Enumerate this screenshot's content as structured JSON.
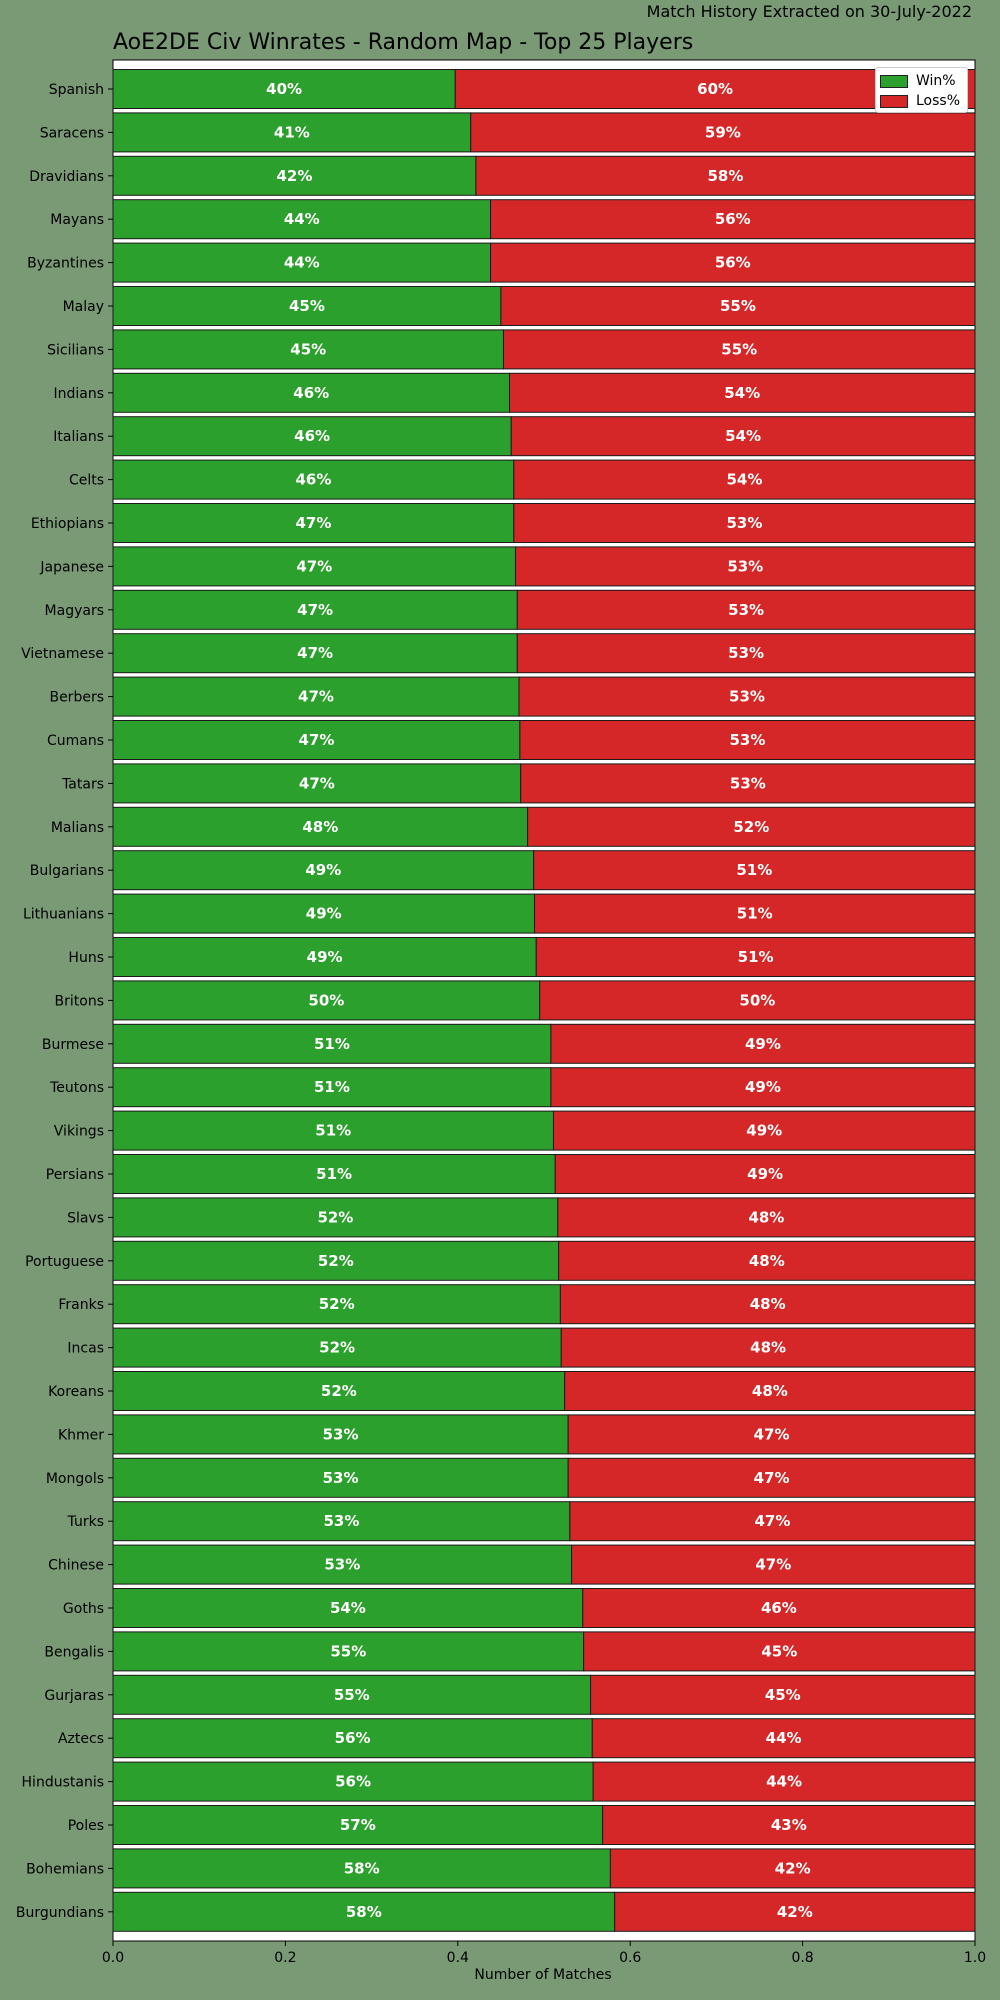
{
  "header": {
    "subtitle": "Match History Extracted on 30-July-2022",
    "title": "AoE2DE Civ Winrates - Random Map - Top 25 Players"
  },
  "legend": {
    "win_label": "Win%",
    "loss_label": "Loss%"
  },
  "colors": {
    "win": "#2ca02c",
    "loss": "#d62728",
    "background": "#7a9a76",
    "plot_background": "#ffffff"
  },
  "chart_data": {
    "type": "bar",
    "orientation": "horizontal",
    "stacked": true,
    "title": "AoE2DE Civ Winrates - Random Map - Top 25 Players",
    "xlabel": "Number of Matches",
    "ylabel": "",
    "xlim": [
      0,
      1.0
    ],
    "xticks": [
      "0.0",
      "0.2",
      "0.4",
      "0.6",
      "0.8",
      "1.0"
    ],
    "legend_position": "top-right",
    "categories": [
      "Spanish",
      "Saracens",
      "Dravidians",
      "Mayans",
      "Byzantines",
      "Malay",
      "Sicilians",
      "Indians",
      "Italians",
      "Celts",
      "Ethiopians",
      "Japanese",
      "Magyars",
      "Vietnamese",
      "Berbers",
      "Cumans",
      "Tatars",
      "Malians",
      "Bulgarians",
      "Lithuanians",
      "Huns",
      "Britons",
      "Burmese",
      "Teutons",
      "Vikings",
      "Persians",
      "Slavs",
      "Portuguese",
      "Franks",
      "Incas",
      "Koreans",
      "Khmer",
      "Mongols",
      "Turks",
      "Chinese",
      "Goths",
      "Bengalis",
      "Gurjaras",
      "Aztecs",
      "Hindustanis",
      "Poles",
      "Bohemians",
      "Burgundians"
    ],
    "series": [
      {
        "name": "Win%",
        "values": [
          0.397,
          0.415,
          0.421,
          0.438,
          0.438,
          0.45,
          0.453,
          0.46,
          0.462,
          0.465,
          0.465,
          0.467,
          0.469,
          0.469,
          0.471,
          0.472,
          0.473,
          0.481,
          0.488,
          0.489,
          0.491,
          0.495,
          0.508,
          0.508,
          0.511,
          0.513,
          0.516,
          0.517,
          0.519,
          0.52,
          0.524,
          0.528,
          0.528,
          0.53,
          0.532,
          0.545,
          0.546,
          0.554,
          0.556,
          0.557,
          0.568,
          0.577,
          0.582
        ],
        "labels": [
          "40%",
          "41%",
          "42%",
          "44%",
          "44%",
          "45%",
          "45%",
          "46%",
          "46%",
          "46%",
          "47%",
          "47%",
          "47%",
          "47%",
          "47%",
          "47%",
          "47%",
          "48%",
          "49%",
          "49%",
          "49%",
          "50%",
          "51%",
          "51%",
          "51%",
          "51%",
          "52%",
          "52%",
          "52%",
          "52%",
          "52%",
          "53%",
          "53%",
          "53%",
          "53%",
          "54%",
          "55%",
          "55%",
          "56%",
          "56%",
          "57%",
          "58%",
          "58%"
        ]
      },
      {
        "name": "Loss%",
        "values": [
          0.603,
          0.585,
          0.579,
          0.562,
          0.562,
          0.55,
          0.547,
          0.54,
          0.538,
          0.535,
          0.535,
          0.533,
          0.531,
          0.531,
          0.529,
          0.528,
          0.527,
          0.519,
          0.512,
          0.511,
          0.509,
          0.505,
          0.492,
          0.492,
          0.489,
          0.487,
          0.484,
          0.483,
          0.481,
          0.48,
          0.476,
          0.472,
          0.472,
          0.47,
          0.468,
          0.455,
          0.454,
          0.446,
          0.444,
          0.443,
          0.432,
          0.423,
          0.418
        ],
        "labels": [
          "60%",
          "59%",
          "58%",
          "56%",
          "56%",
          "55%",
          "55%",
          "54%",
          "54%",
          "54%",
          "53%",
          "53%",
          "53%",
          "53%",
          "53%",
          "53%",
          "53%",
          "52%",
          "51%",
          "51%",
          "51%",
          "50%",
          "49%",
          "49%",
          "49%",
          "49%",
          "48%",
          "48%",
          "48%",
          "48%",
          "48%",
          "47%",
          "47%",
          "47%",
          "47%",
          "46%",
          "45%",
          "45%",
          "44%",
          "44%",
          "43%",
          "42%",
          "42%"
        ]
      }
    ]
  }
}
